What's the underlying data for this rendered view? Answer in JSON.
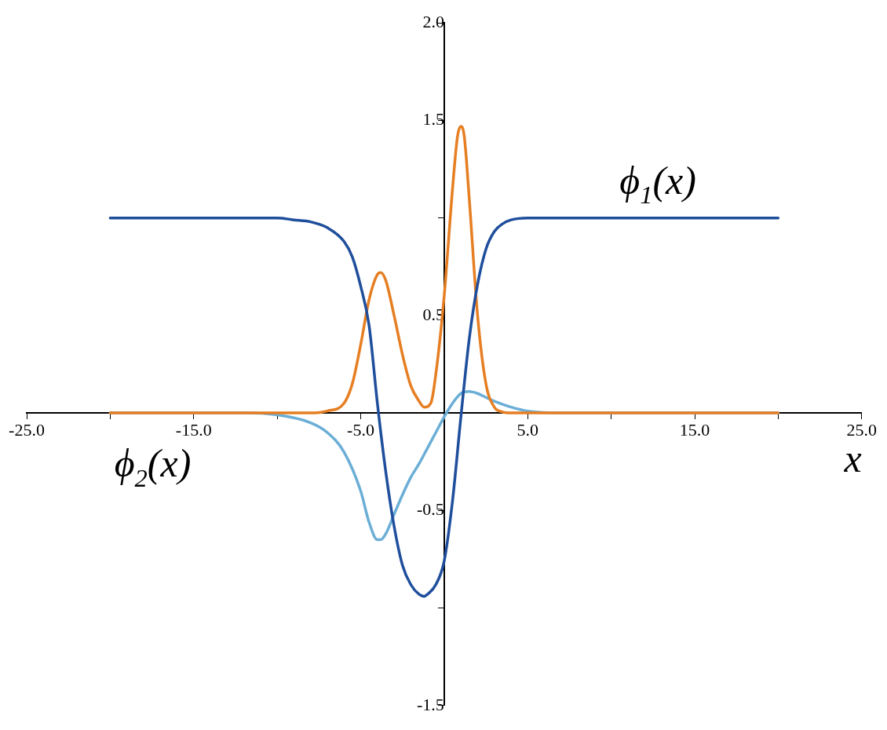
{
  "chart_data": {
    "type": "line",
    "xlabel": "x",
    "xlim": [
      -25,
      25
    ],
    "xticks": [
      {
        "value": -25,
        "label": "-25.0"
      },
      {
        "value": -20,
        "label": null
      },
      {
        "value": -15,
        "label": "-15.0"
      },
      {
        "value": -10,
        "label": null
      },
      {
        "value": -5,
        "label": "-5.0"
      },
      {
        "value": 5,
        "label": "5.0"
      },
      {
        "value": 10,
        "label": null
      },
      {
        "value": 15,
        "label": "15.0"
      },
      {
        "value": 20,
        "label": null
      },
      {
        "value": 25,
        "label": "25.0"
      }
    ],
    "ylim": [
      -1.5,
      2.0
    ],
    "yticks": [
      {
        "value": -1.5,
        "label": "-1.5"
      },
      {
        "value": -1,
        "label": null
      },
      {
        "value": -0.5,
        "label": "-0.5"
      },
      {
        "value": 0.5,
        "label": "0.5"
      },
      {
        "value": 1,
        "label": null
      },
      {
        "value": 1.5,
        "label": "1.5"
      },
      {
        "value": 2,
        "label": "2.0"
      }
    ],
    "grid": false,
    "legend": false,
    "marker": "none",
    "line_style": "solid",
    "series": [
      {
        "color": "#1f4e9c",
        "x": [
          -20,
          -10,
          -9,
          -8,
          -7,
          -6,
          -5.5,
          -5,
          -4.5,
          -4,
          -3.5,
          -3,
          -2.5,
          -2,
          -1.5,
          -1.2,
          -1,
          -0.5,
          0,
          0.5,
          1,
          1.5,
          2,
          2.5,
          3,
          3.5,
          4,
          5,
          20
        ],
        "values": [
          1,
          1,
          0.99,
          0.98,
          0.95,
          0.88,
          0.8,
          0.65,
          0.45,
          0.05,
          -0.3,
          -0.58,
          -0.78,
          -0.88,
          -0.93,
          -0.94,
          -0.93,
          -0.88,
          -0.76,
          -0.45,
          -0.02,
          0.38,
          0.66,
          0.84,
          0.93,
          0.97,
          0.99,
          1,
          1
        ]
      },
      {
        "color": "#e67e22",
        "x": [
          -20,
          -8,
          -7,
          -6,
          -5.5,
          -5,
          -4.5,
          -4,
          -3.8,
          -3.5,
          -3,
          -2.5,
          -2,
          -1.5,
          -1.2,
          -0.8,
          -0.5,
          0,
          0.5,
          0.8,
          1,
          1.2,
          1.5,
          2,
          2.5,
          3,
          3.5,
          4,
          20
        ],
        "values": [
          0,
          0,
          0.01,
          0.05,
          0.15,
          0.35,
          0.58,
          0.71,
          0.72,
          0.68,
          0.5,
          0.3,
          0.14,
          0.06,
          0.03,
          0.05,
          0.2,
          0.6,
          1.15,
          1.42,
          1.47,
          1.42,
          1.1,
          0.5,
          0.15,
          0.03,
          0.005,
          0,
          0
        ]
      },
      {
        "color": "#6baed6",
        "x": [
          -20,
          -12,
          -10,
          -8,
          -7,
          -6,
          -5,
          -4.5,
          -4,
          -3.8,
          -3.5,
          -3,
          -2.5,
          -2,
          -1.5,
          -1,
          -0.5,
          0,
          0.5,
          1,
          1.5,
          2,
          2.5,
          3,
          4,
          5,
          7,
          20
        ],
        "values": [
          0,
          0,
          -0.01,
          -0.05,
          -0.1,
          -0.2,
          -0.4,
          -0.56,
          -0.65,
          -0.65,
          -0.62,
          -0.52,
          -0.42,
          -0.33,
          -0.26,
          -0.18,
          -0.1,
          -0.02,
          0.05,
          0.1,
          0.11,
          0.1,
          0.08,
          0.06,
          0.03,
          0.01,
          0,
          0
        ]
      }
    ],
    "annotations": [
      "ϕ$_{1}$(x)",
      "ϕ$_{2}$(x)"
    ]
  }
}
